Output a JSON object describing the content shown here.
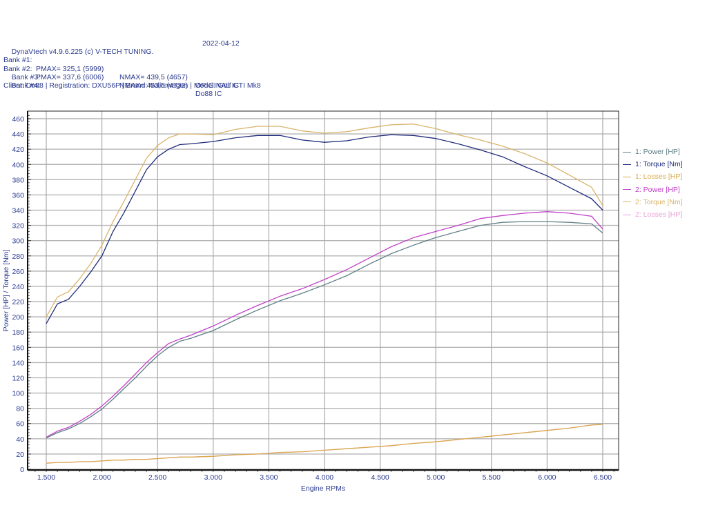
{
  "header": {
    "software": "DynaVtech v4.9.6.225 (c) V-TECH TUNING.",
    "date": "2022-04-12",
    "banks": [
      {
        "label": "Bank #1:",
        "pmax": "PMAX= 325,1 (5999)",
        "nmax": "NMAX= 439,5 (4657)",
        "name": "ORIGINAL IC"
      },
      {
        "label": "Bank #2:",
        "pmax": "PMAX= 337,6 (6006)",
        "nmax": "NMAX= 453,5 (4732)",
        "name": "Do88 IC"
      },
      {
        "label": "Bank #3:",
        "pmax": "",
        "nmax": "",
        "name": ""
      },
      {
        "label": "Bank #4:",
        "pmax": "",
        "nmax": "",
        "name": ""
      }
    ],
    "client_line": "Client: Do88 | Registration: DXU56P | Brand: Volkswagen | Model: Golf GTI Mk8"
  },
  "legend": [
    {
      "label": "1: Power [HP]",
      "color": "#5f7f86"
    },
    {
      "label": "1: Torque [Nm]",
      "color": "#1f2a7a"
    },
    {
      "label": "1: Losses [HP]",
      "color": "#d9a94a"
    },
    {
      "label": "2: Power [HP]",
      "color": "#c040c8"
    },
    {
      "label": "2: Torque [Nm]",
      "color": "#d8b46a"
    },
    {
      "label": "2: Losses [HP]",
      "color": "#e8a0d8"
    }
  ],
  "chart_data": {
    "type": "line",
    "title": "",
    "xlabel": "Engine RPMs",
    "ylabel": "Power [HP] / Torque [Nm]",
    "xlim": [
      1500,
      6500
    ],
    "ylim": [
      0,
      460
    ],
    "x_ticks": [
      "1.500",
      "2.000",
      "2.500",
      "3.000",
      "3.500",
      "4.000",
      "4.500",
      "5.000",
      "5.500",
      "6.000",
      "6.500"
    ],
    "y_ticks": [
      0,
      20,
      40,
      60,
      80,
      100,
      120,
      140,
      160,
      180,
      200,
      220,
      240,
      260,
      280,
      300,
      320,
      340,
      360,
      380,
      400,
      420,
      440,
      460
    ],
    "grid": true,
    "legend_position": "right",
    "x": [
      1500,
      1600,
      1700,
      1800,
      1900,
      2000,
      2100,
      2200,
      2300,
      2400,
      2500,
      2600,
      2700,
      2800,
      3000,
      3200,
      3400,
      3600,
      3800,
      4000,
      4200,
      4400,
      4600,
      4800,
      5000,
      5200,
      5400,
      5600,
      5800,
      6000,
      6200,
      6400,
      6500
    ],
    "series": [
      {
        "name": "1: Power [HP]",
        "color": "#5f7f86",
        "values": [
          41,
          48,
          53,
          60,
          69,
          79,
          92,
          106,
          120,
          135,
          149,
          160,
          168,
          172,
          182,
          196,
          209,
          221,
          231,
          242,
          254,
          269,
          283,
          294,
          304,
          312,
          320,
          324,
          325,
          325,
          324,
          322,
          310
        ]
      },
      {
        "name": "1: Torque [Nm]",
        "color": "#1f2a7a",
        "values": [
          191,
          217,
          223,
          240,
          259,
          280,
          312,
          337,
          365,
          393,
          410,
          420,
          426,
          427,
          430,
          435,
          438,
          438,
          432,
          429,
          431,
          436,
          439,
          438,
          434,
          427,
          419,
          410,
          397,
          385,
          370,
          355,
          340
        ]
      },
      {
        "name": "1: Losses [HP]",
        "color": "#d9a94a",
        "values": [
          8,
          9,
          9,
          10,
          10,
          11,
          12,
          12,
          13,
          13,
          14,
          15,
          16,
          16,
          17,
          19,
          20,
          22,
          23,
          25,
          27,
          29,
          31,
          34,
          36,
          39,
          42,
          45,
          48,
          51,
          54,
          58,
          59
        ]
      },
      {
        "name": "2: Power [HP]",
        "color": "#c040c8",
        "values": [
          42,
          50,
          55,
          63,
          72,
          83,
          96,
          110,
          125,
          140,
          153,
          165,
          171,
          176,
          188,
          202,
          215,
          227,
          237,
          249,
          262,
          277,
          292,
          304,
          312,
          320,
          329,
          333,
          336,
          338,
          336,
          332,
          315
        ]
      },
      {
        "name": "2: Torque [Nm]",
        "color": "#d8b46a",
        "values": [
          200,
          226,
          233,
          250,
          270,
          294,
          325,
          352,
          380,
          408,
          425,
          435,
          440,
          440,
          439,
          446,
          450,
          450,
          444,
          441,
          443,
          448,
          452,
          453,
          447,
          439,
          432,
          424,
          414,
          402,
          386,
          370,
          346
        ]
      },
      {
        "name": "2: Losses [HP]",
        "color": "#e8a0d8",
        "values": [
          8,
          9,
          9,
          10,
          10,
          11,
          12,
          12,
          13,
          13,
          14,
          15,
          16,
          16,
          17,
          19,
          20,
          22,
          23,
          25,
          27,
          29,
          31,
          34,
          36,
          39,
          42,
          45,
          48,
          51,
          54,
          58,
          59
        ]
      }
    ]
  }
}
